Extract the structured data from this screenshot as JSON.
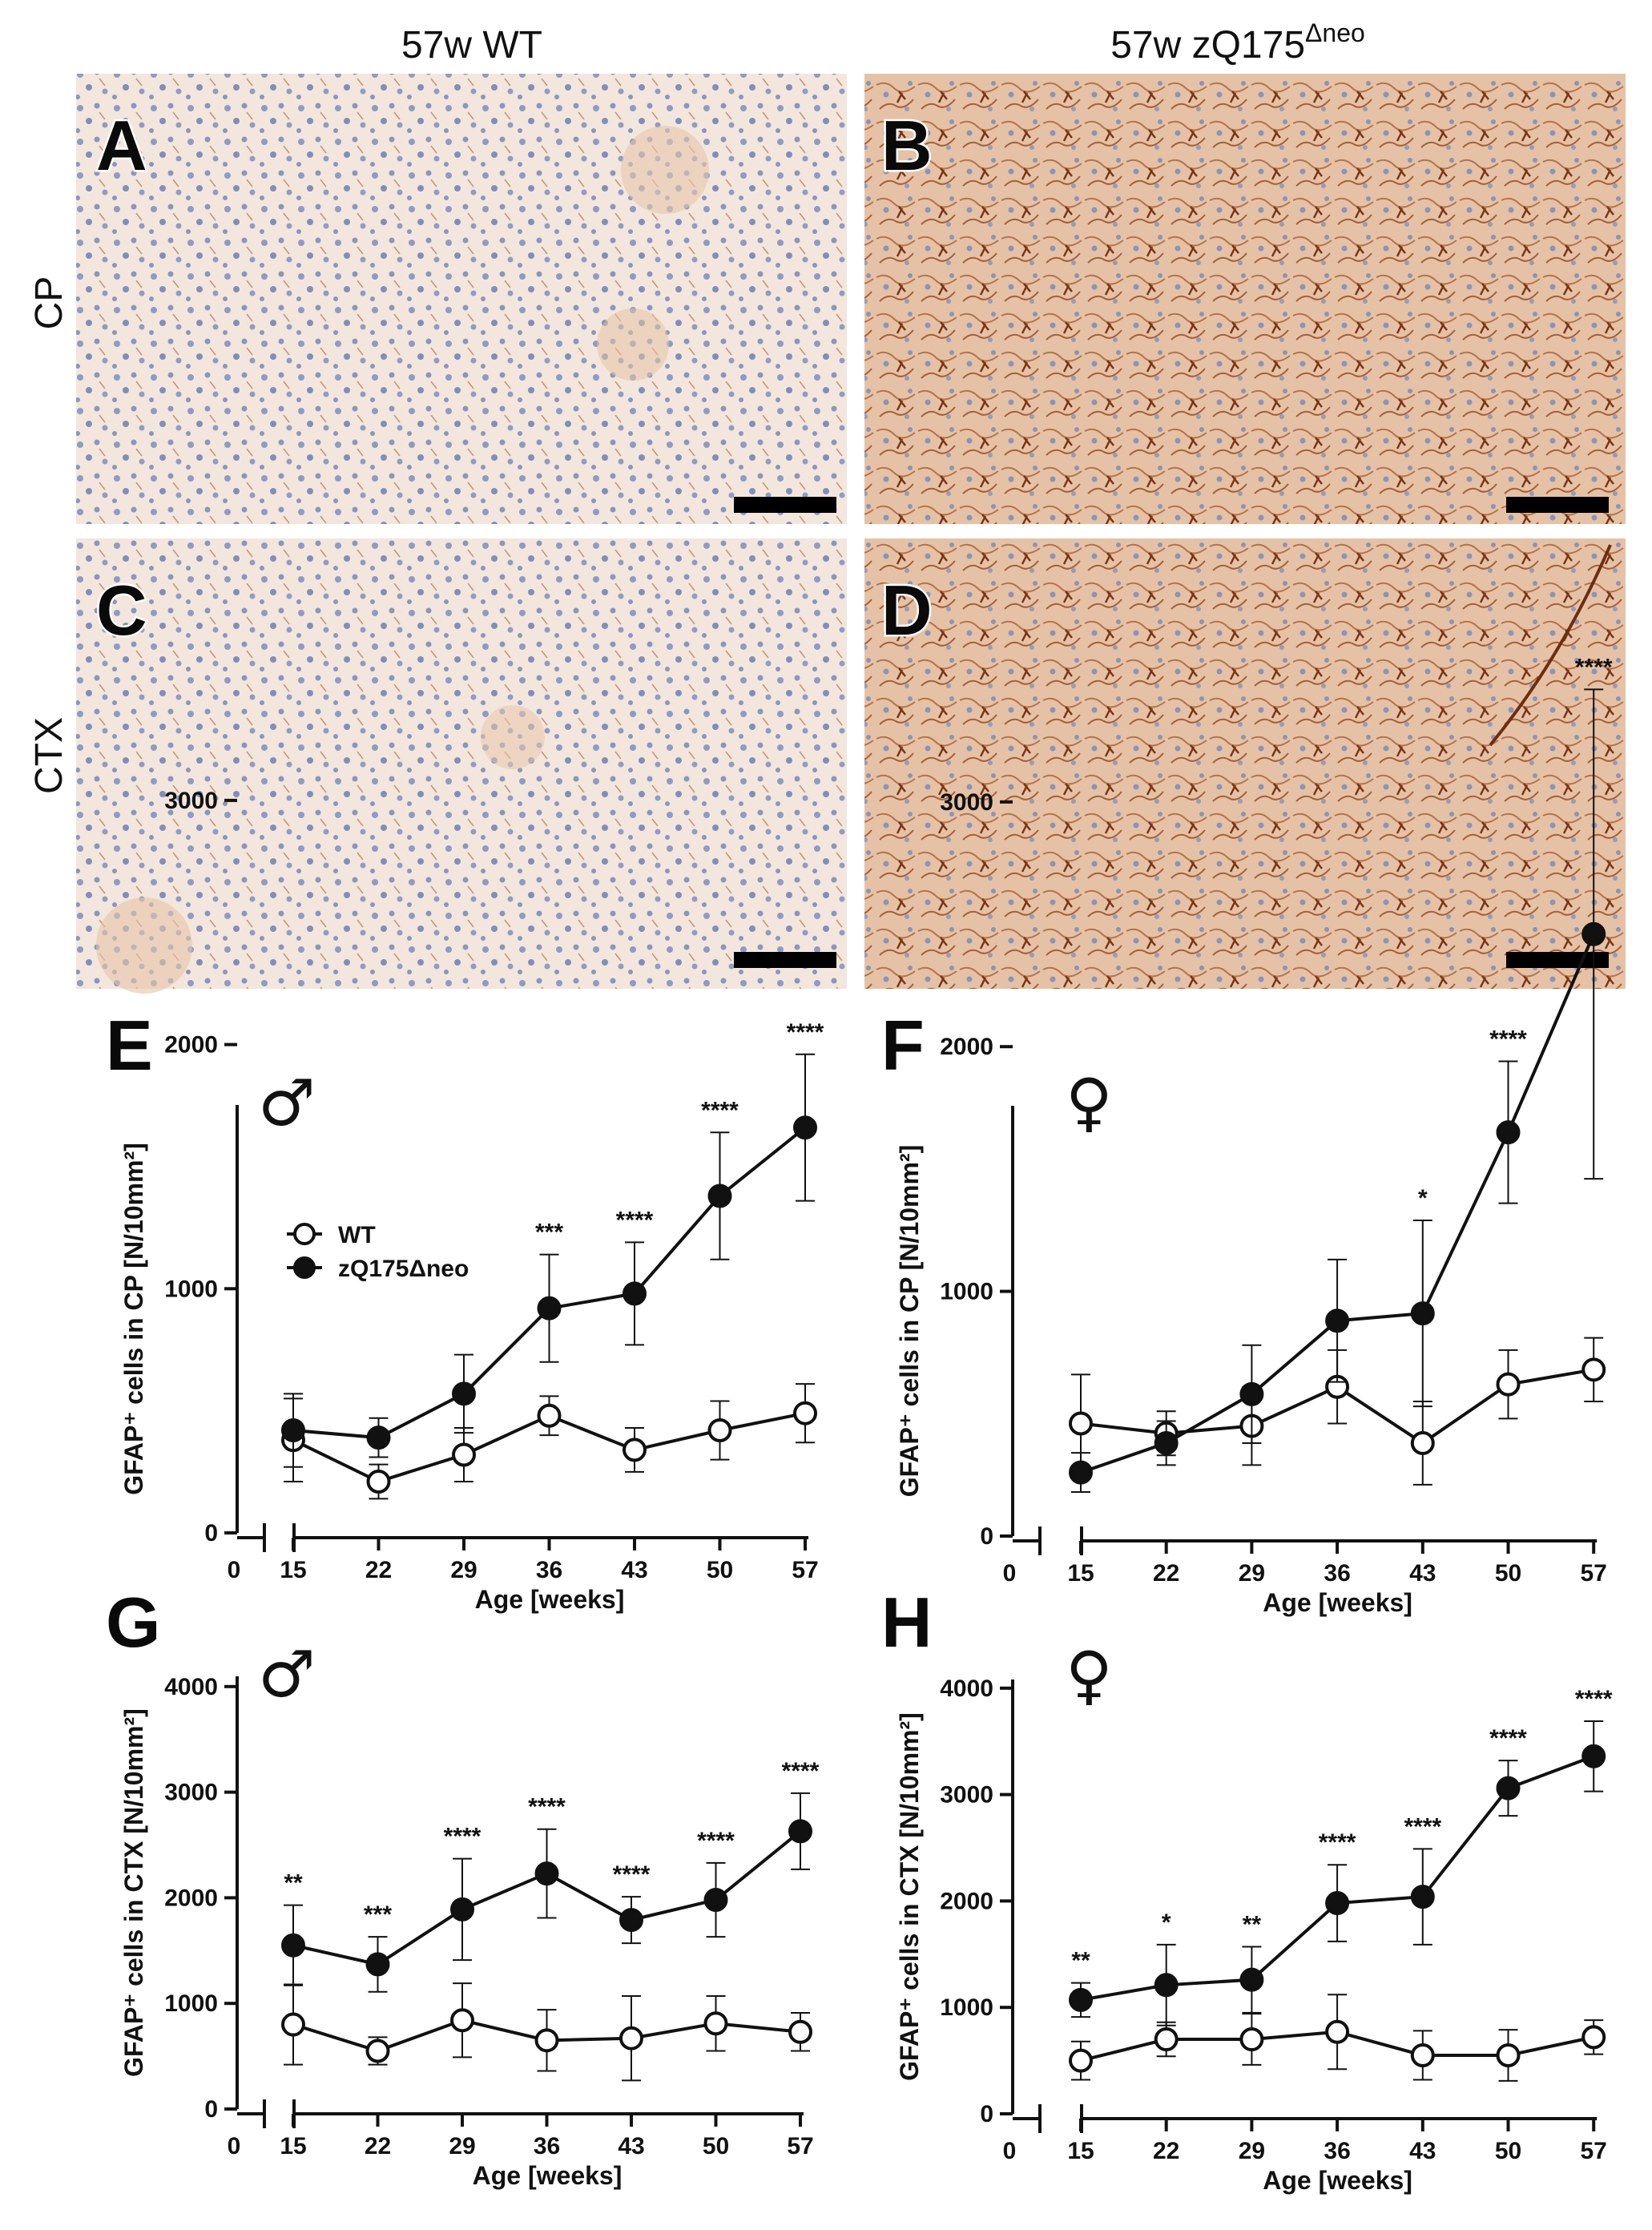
{
  "headers": {
    "col_wt": "57w WT",
    "col_zq": "57w zQ175",
    "col_zq_sup": "Δneo",
    "row_cp": "CP",
    "row_ctx": "CTX"
  },
  "colors": {
    "tissue_background": "#f3e6dc",
    "nuclei": "#7d8fbf",
    "gfap_stain": "#8a3f1c",
    "scale_bar": "#000000",
    "series_line": "#111111"
  },
  "image_panels": [
    {
      "label": "A",
      "region": "CP",
      "genotype": "WT",
      "staining": "light"
    },
    {
      "label": "B",
      "region": "CP",
      "genotype": "zQ175",
      "staining": "heavy"
    },
    {
      "label": "C",
      "region": "CTX",
      "genotype": "WT",
      "staining": "light"
    },
    {
      "label": "D",
      "region": "CTX",
      "genotype": "zQ175",
      "staining": "heavy"
    }
  ],
  "chart_data": [
    {
      "panel": "E",
      "type": "line",
      "sex_symbol": "♂",
      "xlabel": "Age [weeks]",
      "ylabel": "GFAP⁺ cells in CP [N/10mm²]",
      "x": [
        15,
        22,
        29,
        36,
        43,
        50,
        57
      ],
      "x_zero_label": "0",
      "ylim": [
        0,
        3500
      ],
      "yticks": [
        0,
        1000,
        2000,
        3000
      ],
      "legend": {
        "position": "top-left",
        "entries": [
          "WT",
          "zQ175Δneo"
        ]
      },
      "series": [
        {
          "name": "WT",
          "marker": "open-circle",
          "values": [
            380,
            210,
            320,
            480,
            340,
            420,
            490
          ],
          "errors": [
            170,
            70,
            110,
            80,
            90,
            120,
            120
          ]
        },
        {
          "name": "zQ175Δneo",
          "marker": "filled-circle",
          "values": [
            420,
            390,
            570,
            920,
            980,
            1380,
            1660
          ],
          "errors": [
            150,
            80,
            160,
            220,
            210,
            260,
            300
          ]
        }
      ],
      "significance": [
        "",
        "",
        "",
        "***",
        "****",
        "****",
        "****"
      ]
    },
    {
      "panel": "F",
      "type": "line",
      "sex_symbol": "♀",
      "xlabel": "Age [weeks]",
      "ylabel": "GFAP⁺ cells in CP [N/10mm²]",
      "x": [
        15,
        22,
        29,
        36,
        43,
        50,
        57
      ],
      "x_zero_label": "0",
      "ylim": [
        0,
        3500
      ],
      "yticks": [
        0,
        1000,
        2000,
        3000
      ],
      "series": [
        {
          "name": "WT",
          "marker": "open-circle",
          "values": [
            460,
            420,
            450,
            610,
            380,
            620,
            680
          ],
          "errors": [
            200,
            90,
            160,
            150,
            170,
            140,
            130
          ]
        },
        {
          "name": "zQ175Δneo",
          "marker": "filled-circle",
          "values": [
            260,
            380,
            580,
            880,
            910,
            1650,
            2460
          ],
          "errors": [
            80,
            90,
            200,
            250,
            380,
            290,
            1000
          ]
        }
      ],
      "significance": [
        "",
        "",
        "",
        "",
        "*",
        "****",
        "****"
      ]
    },
    {
      "panel": "G",
      "type": "line",
      "sex_symbol": "♂",
      "xlabel": "Age [weeks]",
      "ylabel": "GFAP⁺ cells in CTX [N/10mm²]",
      "x": [
        15,
        22,
        29,
        36,
        43,
        50,
        57
      ],
      "x_zero_label": "0",
      "ylim": [
        0,
        4000
      ],
      "yticks": [
        0,
        1000,
        2000,
        3000,
        4000
      ],
      "series": [
        {
          "name": "WT",
          "marker": "open-circle",
          "values": [
            800,
            550,
            840,
            650,
            670,
            810,
            730
          ],
          "errors": [
            380,
            130,
            350,
            290,
            400,
            260,
            180
          ]
        },
        {
          "name": "zQ175Δneo",
          "marker": "filled-circle",
          "values": [
            1550,
            1370,
            1890,
            2230,
            1790,
            1980,
            2630
          ],
          "errors": [
            380,
            260,
            480,
            420,
            220,
            350,
            360
          ]
        }
      ],
      "significance": [
        "**",
        "***",
        "****",
        "****",
        "****",
        "****",
        "****"
      ]
    },
    {
      "panel": "H",
      "type": "line",
      "sex_symbol": "♀",
      "xlabel": "Age [weeks]",
      "ylabel": "GFAP⁺ cells in CTX [N/10mm²]",
      "x": [
        15,
        22,
        29,
        36,
        43,
        50,
        57
      ],
      "x_zero_label": "0",
      "ylim": [
        0,
        4000
      ],
      "yticks": [
        0,
        1000,
        2000,
        3000,
        4000
      ],
      "series": [
        {
          "name": "WT",
          "marker": "open-circle",
          "values": [
            500,
            700,
            700,
            770,
            550,
            550,
            720
          ],
          "errors": [
            180,
            160,
            240,
            350,
            230,
            240,
            160
          ]
        },
        {
          "name": "zQ175Δneo",
          "marker": "filled-circle",
          "values": [
            1070,
            1210,
            1260,
            1980,
            2040,
            3060,
            3360
          ],
          "errors": [
            160,
            380,
            310,
            360,
            450,
            260,
            330
          ]
        }
      ],
      "significance": [
        "**",
        "*",
        "**",
        "****",
        "****",
        "****",
        "****"
      ]
    }
  ]
}
